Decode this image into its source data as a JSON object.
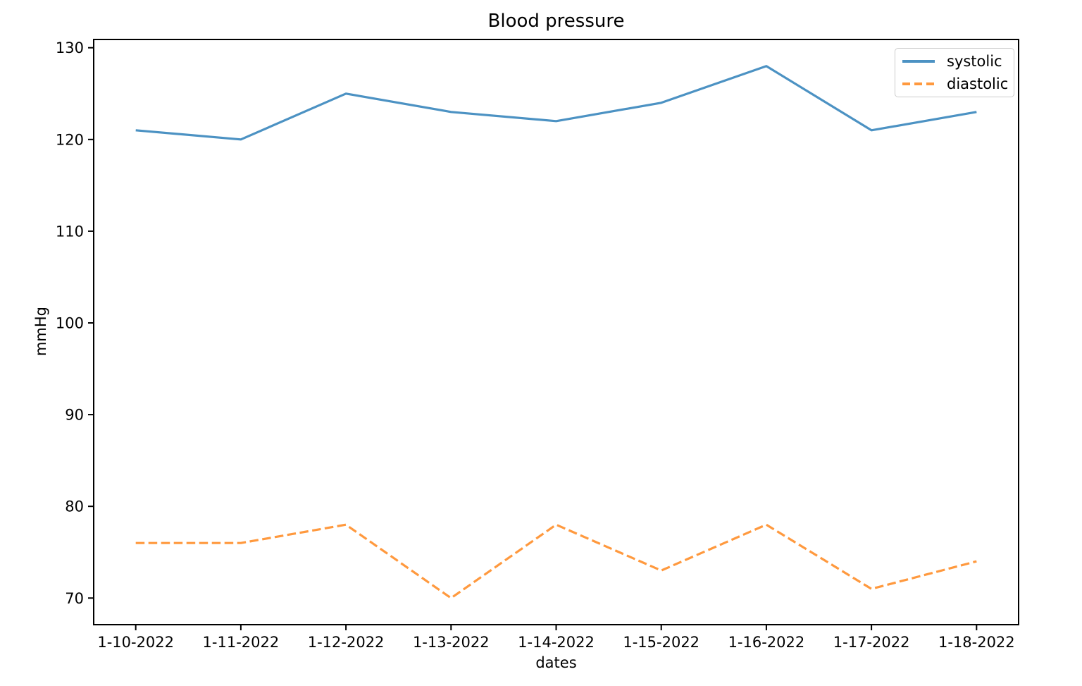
{
  "chart_data": {
    "type": "line",
    "title": "Blood pressure",
    "xlabel": "dates",
    "ylabel": "mmHg",
    "categories": [
      "1-10-2022",
      "1-11-2022",
      "1-12-2022",
      "1-13-2022",
      "1-14-2022",
      "1-15-2022",
      "1-16-2022",
      "1-17-2022",
      "1-18-2022"
    ],
    "series": [
      {
        "name": "systolic",
        "style": "solid",
        "color": "#4c92c3",
        "values": [
          121,
          120,
          125,
          123,
          122,
          124,
          128,
          121,
          123
        ]
      },
      {
        "name": "diastolic",
        "style": "dashed",
        "color": "#ff993e",
        "values": [
          76,
          76,
          78,
          70,
          78,
          73,
          78,
          71,
          74
        ]
      }
    ],
    "yticks": [
      70,
      80,
      90,
      100,
      110,
      120,
      130
    ],
    "ylim": [
      67.1,
      130.9
    ],
    "xlim_index": [
      -0.4,
      8.4
    ],
    "grid": false,
    "legend_position": "upper right",
    "axis_color": "#000000",
    "background_color": "#ffffff"
  }
}
